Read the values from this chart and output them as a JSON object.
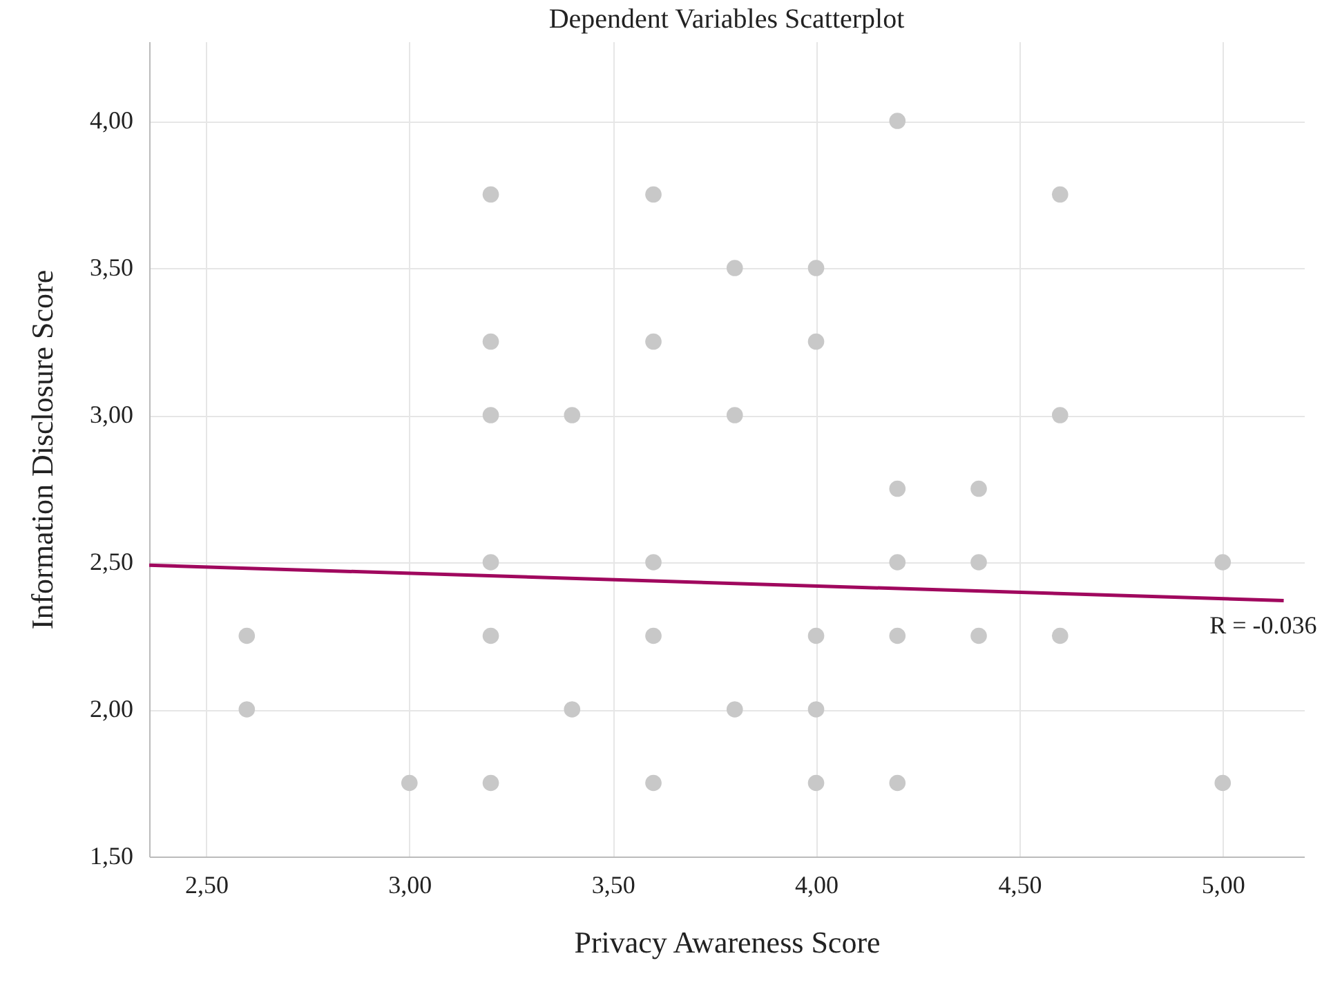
{
  "chart_data": {
    "type": "scatter",
    "title": "Dependent Variables Scatterplot",
    "xlabel": "Privacy Awareness Score",
    "ylabel": "Information Disclosure Score",
    "xlim": [
      2.36,
      5.2
    ],
    "ylim": [
      1.5,
      4.27
    ],
    "xticks": [
      {
        "value": 2.5,
        "label": "2,50"
      },
      {
        "value": 3,
        "label": "3,00"
      },
      {
        "value": 3.5,
        "label": "3,50"
      },
      {
        "value": 4,
        "label": "4,00"
      },
      {
        "value": 4.5,
        "label": "4,50"
      },
      {
        "value": 5,
        "label": "5,00"
      }
    ],
    "yticks": [
      {
        "value": 1.5,
        "label": "1,50"
      },
      {
        "value": 2,
        "label": "2,00"
      },
      {
        "value": 2.5,
        "label": "2,50"
      },
      {
        "value": 3,
        "label": "3,00"
      },
      {
        "value": 3.5,
        "label": "3,50"
      },
      {
        "value": 4,
        "label": "4,00"
      }
    ],
    "grid": true,
    "series": [
      {
        "marker": "circle",
        "color": "#c8c8c8",
        "x": [
          2.6,
          2.6,
          3.0,
          3.2,
          3.2,
          3.2,
          3.2,
          3.2,
          3.2,
          3.4,
          3.4,
          3.6,
          3.6,
          3.6,
          3.6,
          3.6,
          3.8,
          3.8,
          3.8,
          4.0,
          4.0,
          4.0,
          4.0,
          4.0,
          4.2,
          4.2,
          4.2,
          4.2,
          4.2,
          4.4,
          4.4,
          4.4,
          4.6,
          4.6,
          4.6,
          5.0,
          5.0
        ],
        "values": [
          2.25,
          2.0,
          1.75,
          3.75,
          3.25,
          3.0,
          2.5,
          2.25,
          1.75,
          3.0,
          2.0,
          3.75,
          3.25,
          2.5,
          2.25,
          1.75,
          3.5,
          3.0,
          2.0,
          3.5,
          3.25,
          2.25,
          2.0,
          1.75,
          4.0,
          2.75,
          2.5,
          2.25,
          1.75,
          2.75,
          2.5,
          2.25,
          3.75,
          3.0,
          2.25,
          2.5,
          1.75
        ]
      },
      {
        "type": "line",
        "color": "#a0085e",
        "x": [
          2.36,
          5.15
        ],
        "values": [
          2.49,
          2.37
        ]
      }
    ],
    "annotations": [
      {
        "text": "R = -0.036",
        "x": 5.15,
        "y": 2.37
      }
    ]
  }
}
